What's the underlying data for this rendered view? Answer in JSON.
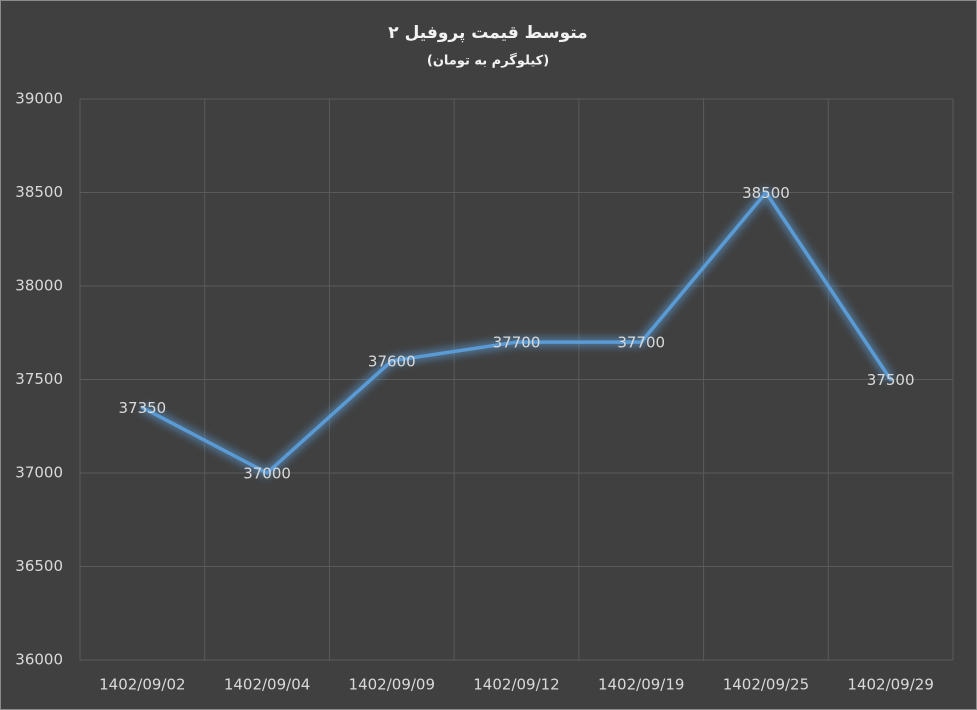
{
  "chart_data": {
    "type": "line",
    "title": "متوسط قیمت پروفیل ۲",
    "subtitle": "(کیلوگرم به تومان)",
    "categories": [
      "1402/09/02",
      "1402/09/04",
      "1402/09/09",
      "1402/09/12",
      "1402/09/19",
      "1402/09/25",
      "1402/09/29"
    ],
    "values": [
      37350,
      37000,
      37600,
      37700,
      37700,
      38500,
      37500
    ],
    "color": "#5b9bd5",
    "ylim": [
      36000,
      39000
    ],
    "yticks": [
      36000,
      36500,
      37000,
      37500,
      38000,
      38500,
      39000
    ],
    "grid": true
  }
}
